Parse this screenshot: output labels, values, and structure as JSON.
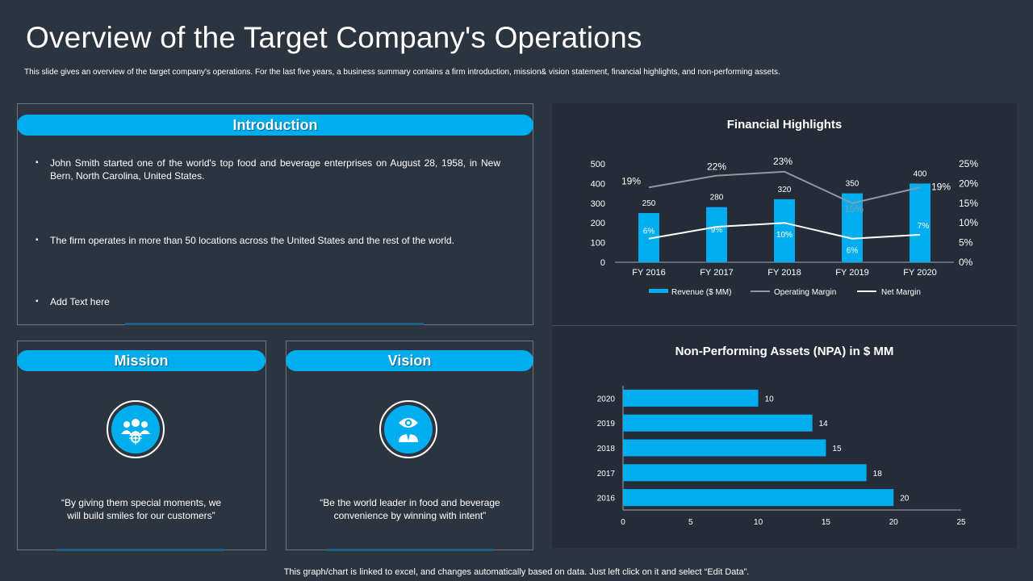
{
  "title": "Overview of the Target Company's Operations",
  "subtitle": "This slide gives an overview of the target company's operations. For the last five years, a business summary contains a firm introduction, mission& vision statement, financial highlights, and non-performing assets.",
  "introduction": {
    "heading": "Introduction",
    "bullets": [
      "John Smith started one of the world's top food and beverage  enterprises on August 28, 1958, in New Bern, North Carolina, United States.",
      "The firm operates in more than 50 locations across the United States and the rest of the world.",
      "Add Text here"
    ]
  },
  "mission": {
    "heading": "Mission",
    "icon": "team-target-icon",
    "quote_line1": "“By giving them special moments, we",
    "quote_line2": "will build smiles for our customers”"
  },
  "vision": {
    "heading": "Vision",
    "icon": "eye-person-icon",
    "quote_line1": "“Be the world leader in food and beverage",
    "quote_line2": "convenience  by winning with intent”"
  },
  "footer": "This graph/chart is linked to excel, and changes automatically based on data. Just left click on it and select “Edit Data”.",
  "colors": {
    "accent": "#00adef",
    "background": "#2c3440",
    "panel": "#252c37",
    "operating_margin": "#8a9aab",
    "net_margin": "#ffffff"
  },
  "chart_data": [
    {
      "type": "bar",
      "title": "Financial Highlights",
      "categories": [
        "FY 2016",
        "FY 2017",
        "FY 2018",
        "FY 2019",
        "FY 2020"
      ],
      "series": [
        {
          "name": "Revenue ($ MM)",
          "type": "bar",
          "values": [
            250,
            280,
            320,
            350,
            400
          ],
          "labels": [
            "250",
            "280",
            "320",
            "350",
            "400"
          ]
        },
        {
          "name": "Operating Margin",
          "type": "line",
          "axis": "right",
          "values": [
            19,
            22,
            23,
            15,
            19
          ],
          "labels": [
            "19%",
            "22%",
            "23%",
            "15%",
            "19%"
          ]
        },
        {
          "name": "Net Margin",
          "type": "line",
          "axis": "right",
          "values": [
            6,
            9,
            10,
            6,
            7
          ],
          "labels": [
            "6%",
            "9%",
            "10%",
            "6%",
            "7%"
          ]
        }
      ],
      "ylim": [
        0,
        500
      ],
      "yticks": [
        "0",
        "100",
        "200",
        "300",
        "400",
        "500"
      ],
      "y2lim": [
        0,
        25
      ],
      "y2ticks": [
        "0%",
        "5%",
        "10%",
        "15%",
        "20%",
        "25%"
      ],
      "legend": "bottom"
    },
    {
      "type": "bar",
      "orientation": "horizontal",
      "title": "Non-Performing Assets  (NPA) in $ MM",
      "categories": [
        "2020",
        "2019",
        "2018",
        "2017",
        "2016"
      ],
      "values": [
        10,
        14,
        15,
        18,
        20
      ],
      "labels": [
        "10",
        "14",
        "15",
        "18",
        "20"
      ],
      "xlim": [
        0,
        25
      ],
      "xticks": [
        "0",
        "5",
        "10",
        "15",
        "20",
        "25"
      ]
    }
  ]
}
